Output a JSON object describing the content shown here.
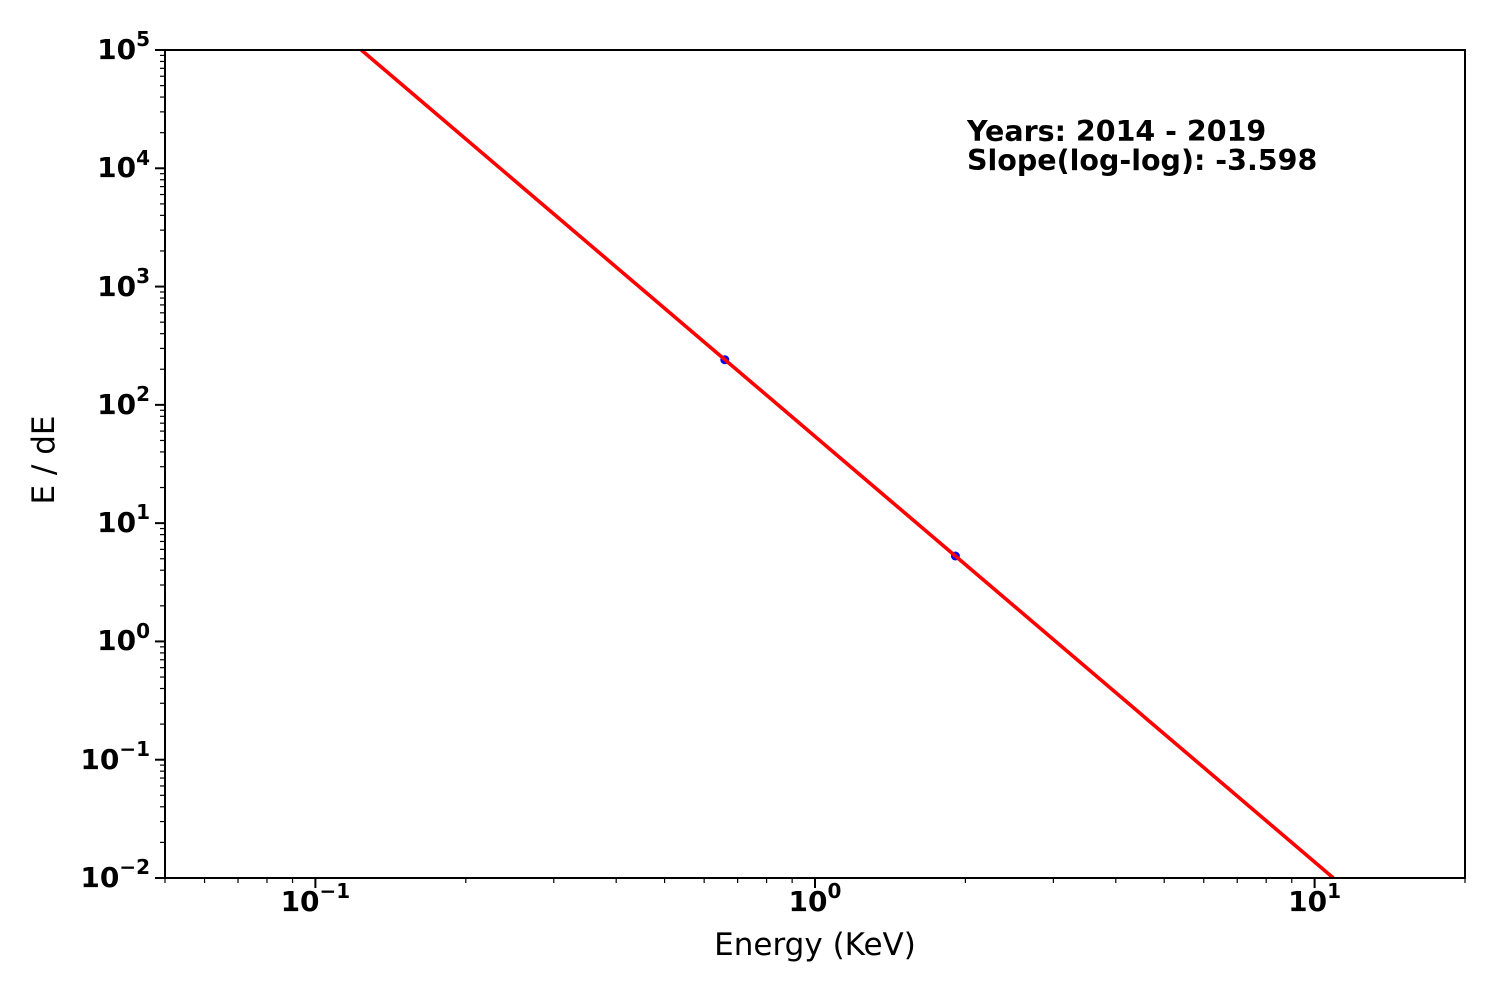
{
  "chart_data": {
    "type": "scatter",
    "title": "",
    "xlabel": "Energy (KeV)",
    "ylabel": "E / dE",
    "x_scale": "log",
    "y_scale": "log",
    "xlim": [
      0.05,
      20
    ],
    "ylim": [
      0.01,
      100000
    ],
    "x_tick_exponents": [
      -1,
      0,
      1
    ],
    "y_tick_exponents": [
      -2,
      -1,
      0,
      1,
      2,
      3,
      4,
      5
    ],
    "grid": false,
    "legend": false,
    "points": {
      "x": [
        0.66,
        1.91
      ],
      "y": [
        241,
        5.27
      ],
      "color": "#0000ff"
    },
    "fit_line": {
      "slope_loglog": -3.598,
      "color": "#ff0000"
    },
    "annotation": {
      "line1": "Years: 2014 - 2019",
      "line2": "Slope(log-log): -3.598"
    },
    "axis_color": "#000000",
    "background_color": "#ffffff"
  }
}
